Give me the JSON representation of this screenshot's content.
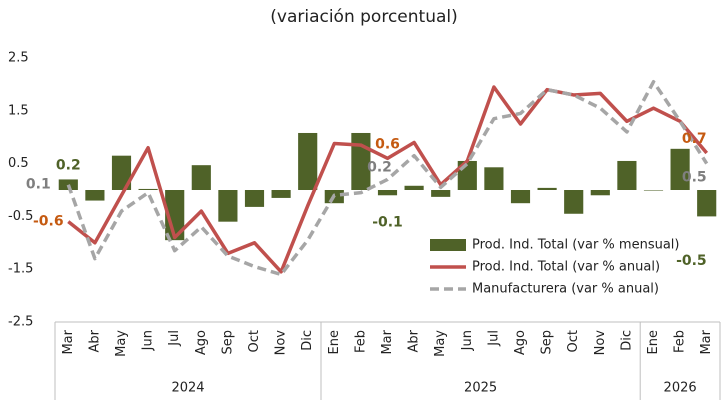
{
  "chart_data": {
    "type": "bar-line",
    "title": "(variación porcentual)",
    "categories": [
      "Mar",
      "Abr",
      "May",
      "Jun",
      "Jul",
      "Ago",
      "Sep",
      "Oct",
      "Nov",
      "Dic",
      "Ene",
      "Feb",
      "Mar",
      "Abr",
      "May",
      "Jun",
      "Jul",
      "Ago",
      "Sep",
      "Oct",
      "Nov",
      "Dic",
      "Ene",
      "Feb",
      "Mar"
    ],
    "groups": [
      {
        "name": "2024",
        "count": 10
      },
      {
        "name": "2025",
        "count": 12
      },
      {
        "name": "2026",
        "count": 3
      }
    ],
    "ylim": [
      -2.5,
      2.5
    ],
    "yticks": [
      -2.5,
      -1.5,
      -0.5,
      0.5,
      1.5,
      2.5
    ],
    "series": [
      {
        "name": "Prod. Ind. Total (var % mensual)",
        "kind": "bar",
        "color": "#4f6228",
        "label_color": "#4f6228",
        "values": [
          0.2,
          -0.2,
          0.65,
          0.02,
          -0.95,
          0.47,
          -0.6,
          -0.32,
          -0.15,
          1.08,
          -0.25,
          1.08,
          -0.1,
          0.08,
          -0.13,
          0.55,
          0.43,
          -0.25,
          0.04,
          -0.45,
          -0.1,
          0.55,
          -0.01,
          0.78,
          -0.5
        ],
        "value_labels": [
          "0.2",
          null,
          null,
          null,
          null,
          null,
          null,
          null,
          null,
          null,
          null,
          null,
          "-0.1",
          null,
          null,
          null,
          null,
          null,
          null,
          null,
          null,
          null,
          null,
          null,
          "-0.5"
        ]
      },
      {
        "name": "Prod. Ind. Total (var % anual)",
        "kind": "line",
        "color": "#c0504d",
        "label_color": "#c55a11",
        "values": [
          -0.6,
          -1.0,
          -0.1,
          0.8,
          -0.9,
          -0.4,
          -1.2,
          -1.0,
          -1.55,
          -0.3,
          0.88,
          0.85,
          0.6,
          0.9,
          0.1,
          0.55,
          1.95,
          1.25,
          1.9,
          1.8,
          1.83,
          1.3,
          1.55,
          1.3,
          0.7
        ],
        "value_labels": [
          "-0.6",
          null,
          null,
          null,
          null,
          null,
          null,
          null,
          null,
          null,
          null,
          null,
          "0.6",
          null,
          null,
          null,
          null,
          null,
          null,
          null,
          null,
          null,
          null,
          null,
          "0.7"
        ]
      },
      {
        "name": "Manufacturera (var % anual)",
        "kind": "dashed",
        "color": "#a6a6a6",
        "label_color": "#7f7f7f",
        "values": [
          0.1,
          -1.3,
          -0.4,
          -0.05,
          -1.15,
          -0.7,
          -1.25,
          -1.45,
          -1.6,
          -0.95,
          -0.1,
          -0.05,
          0.2,
          0.65,
          0.05,
          0.5,
          1.35,
          1.45,
          1.9,
          1.8,
          1.55,
          1.1,
          2.05,
          1.3,
          0.5
        ],
        "value_labels": [
          "0.1",
          null,
          null,
          null,
          null,
          null,
          null,
          null,
          null,
          null,
          null,
          null,
          "0.2",
          null,
          null,
          null,
          null,
          null,
          null,
          null,
          null,
          null,
          null,
          null,
          "0.5"
        ]
      }
    ]
  }
}
